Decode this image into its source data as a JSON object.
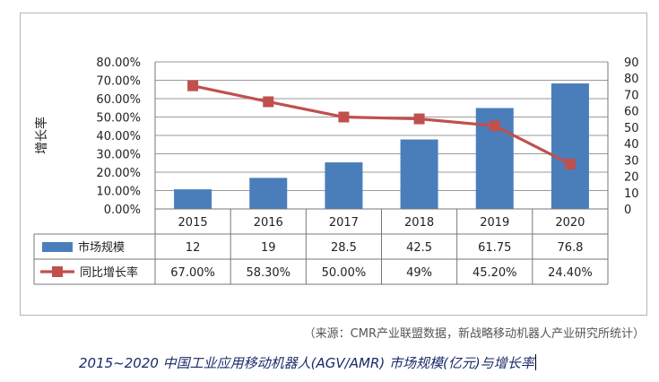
{
  "chart_data": {
    "type": "bar+line",
    "categories": [
      "2015",
      "2016",
      "2017",
      "2018",
      "2019",
      "2020"
    ],
    "series": [
      {
        "name": "市场规模",
        "kind": "bar",
        "axis": "right",
        "color": "#4a7ebb",
        "values": [
          12,
          19,
          28.5,
          42.5,
          61.75,
          76.8
        ],
        "labels": [
          "12",
          "19",
          "28.5",
          "42.5",
          "61.75",
          "76.8"
        ]
      },
      {
        "name": "同比增长率",
        "kind": "line",
        "axis": "left",
        "color": "#c0504d",
        "values": [
          0.67,
          0.583,
          0.5,
          0.49,
          0.452,
          0.244
        ],
        "labels": [
          "67.00%",
          "58.30%",
          "50.00%",
          "49%",
          "45.20%",
          "24.40%"
        ]
      }
    ],
    "left_axis": {
      "label": "增长率",
      "ylim": [
        0,
        0.8
      ],
      "ticks": [
        "0.00%",
        "10.00%",
        "20.00%",
        "30.00%",
        "40.00%",
        "50.00%",
        "60.00%",
        "70.00%",
        "80.00%"
      ]
    },
    "right_axis": {
      "ylim": [
        0,
        90
      ],
      "ticks": [
        "0",
        "10",
        "20",
        "30",
        "40",
        "50",
        "60",
        "70",
        "80",
        "90"
      ]
    },
    "grid": true,
    "legend": "data-table"
  },
  "source_note": "（来源：CMR产业联盟数据，新战略移动机器人产业研究所统计）",
  "caption": "2015~2020 中国工业应用移动机器人(AGV/AMR)  市场规模(亿元)与增长率"
}
